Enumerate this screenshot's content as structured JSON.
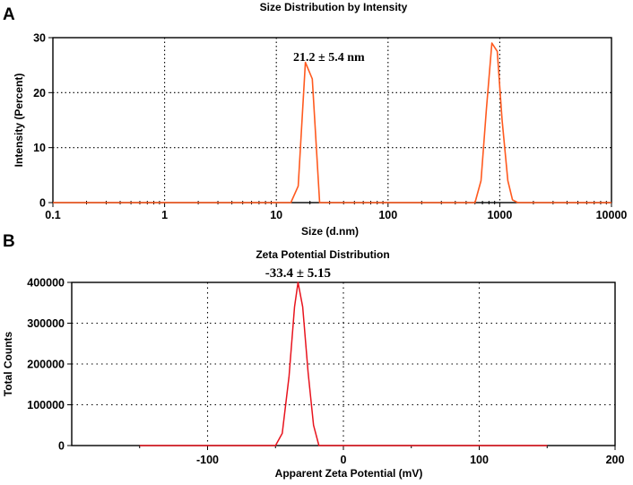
{
  "chart_data": [
    {
      "panel": "A",
      "type": "line",
      "title": "Size Distribution by Intensity",
      "xlabel": "Size (d.nm)",
      "ylabel": "Intensity (Percent)",
      "x_scale": "log",
      "xlim": [
        0.1,
        10000
      ],
      "ylim": [
        0,
        30
      ],
      "x_ticks": [
        "0.1",
        "1",
        "10",
        "100",
        "1000",
        "10000"
      ],
      "y_ticks": [
        "0",
        "10",
        "20",
        "30"
      ],
      "grid": true,
      "series": [
        {
          "color": "#ff5a1f",
          "x": [
            0.1,
            13.5,
            15.7,
            18.2,
            21.0,
            24.4,
            26.0,
            26.1,
            600,
            680,
            760,
            850,
            950,
            1050,
            1180,
            1300,
            1450,
            1700,
            10000
          ],
          "y": [
            0,
            0,
            3,
            25.5,
            22.5,
            0,
            0,
            0,
            0,
            4,
            17,
            29,
            27.5,
            15,
            4,
            0.5,
            0,
            0,
            0
          ]
        }
      ],
      "annotations": [
        {
          "text": "21.2 ± 5.4 nm",
          "x": 21.2,
          "y": 26
        }
      ]
    },
    {
      "panel": "B",
      "type": "line",
      "title": "Zeta Potential Distribution",
      "xlabel": "Apparent Zeta Potential (mV)",
      "ylabel": "Total Counts",
      "xlim": [
        -200,
        200
      ],
      "ylim": [
        0,
        400000
      ],
      "x_ticks": [
        "-100",
        "0",
        "100",
        "200"
      ],
      "y_ticks": [
        "0",
        "100000",
        "200000",
        "300000",
        "400000"
      ],
      "grid": true,
      "series": [
        {
          "color": "#e8141e",
          "x": [
            -150,
            -50,
            -45,
            -40,
            -36,
            -33.4,
            -30,
            -26,
            -22,
            -18,
            150
          ],
          "y": [
            0,
            0,
            30000,
            170000,
            340000,
            400000,
            340000,
            180000,
            50000,
            0,
            0
          ]
        }
      ],
      "annotations": [
        {
          "text": "-33.4 ± 5.15",
          "x": -33.4,
          "y": 400000
        }
      ]
    }
  ]
}
